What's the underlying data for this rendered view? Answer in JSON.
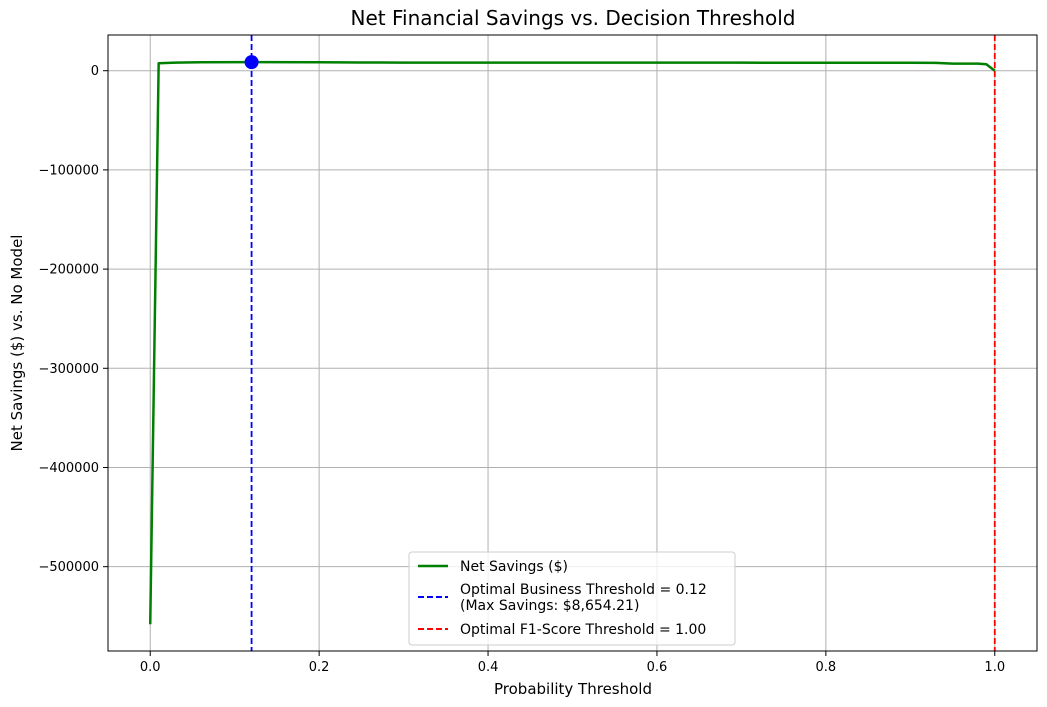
{
  "chart_data": {
    "type": "line",
    "title": "Net Financial Savings vs. Decision Threshold",
    "xlabel": "Probability Threshold",
    "ylabel": "Net Savings ($) vs. No Model",
    "xlim": [
      -0.05,
      1.05
    ],
    "ylim": [
      -585000,
      36000
    ],
    "grid": true,
    "x_ticks": [
      0.0,
      0.2,
      0.4,
      0.6,
      0.8,
      1.0
    ],
    "x_tick_labels": [
      "0.0",
      "0.2",
      "0.4",
      "0.6",
      "0.8",
      "1.0"
    ],
    "y_ticks": [
      0,
      -100000,
      -200000,
      -300000,
      -400000,
      -500000
    ],
    "y_tick_labels": [
      "0",
      "−100000",
      "−200000",
      "−300000",
      "−400000",
      "−500000"
    ],
    "series": [
      {
        "name": "Net Savings ($)",
        "color": "#008000",
        "x": [
          0.0,
          0.01,
          0.03,
          0.06,
          0.12,
          0.2,
          0.25,
          0.3,
          0.4,
          0.5,
          0.6,
          0.7,
          0.8,
          0.9,
          0.93,
          0.95,
          0.98,
          0.99,
          1.0
        ],
        "y": [
          -558000,
          7500,
          8200,
          8500,
          8654.21,
          8500,
          8300,
          8200,
          8150,
          8100,
          8100,
          8100,
          8050,
          8000,
          7900,
          7200,
          7200,
          6500,
          0
        ]
      }
    ],
    "reference_lines": [
      {
        "orientation": "vertical",
        "x": 0.12,
        "color": "#0000ff",
        "style": "dashed",
        "label_line1": "Optimal Business Threshold = 0.12",
        "label_line2": "(Max Savings: $8,654.21)"
      },
      {
        "orientation": "vertical",
        "x": 1.0,
        "color": "#ff0000",
        "style": "dashed",
        "label_line1": "Optimal F1-Score Threshold = 1.00"
      }
    ],
    "marker": {
      "x": 0.12,
      "y": 8654.21,
      "color": "#0000ff"
    },
    "legend_position": "lower-center"
  }
}
